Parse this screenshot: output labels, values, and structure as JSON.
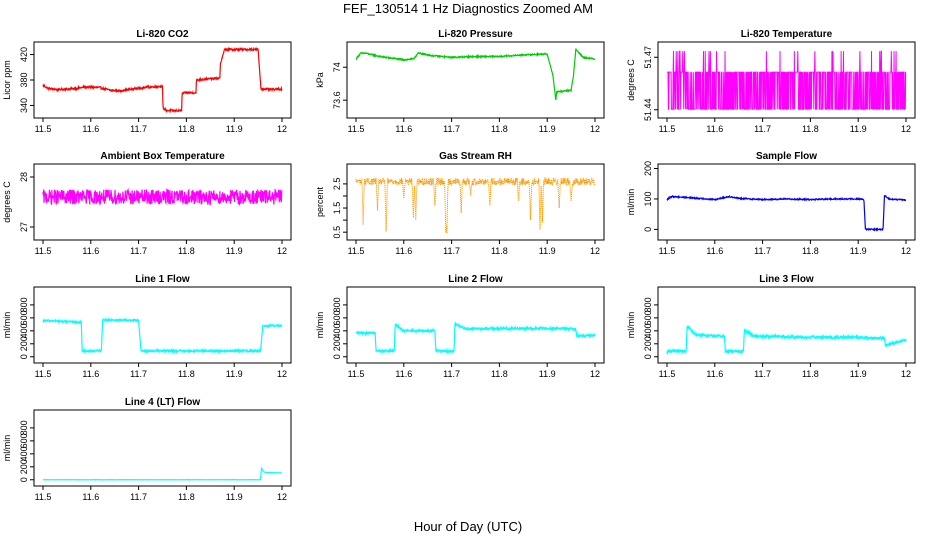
{
  "figure": {
    "title": "FEF_130514  1 Hz Diagnostics Zoomed AM",
    "xlabel": "Hour of Day (UTC)"
  },
  "chart_data": [
    {
      "type": "line",
      "title": "Li-820 CO2",
      "xlabel": "",
      "ylabel": "Licor ppm",
      "color": "#ff0000",
      "xlim": [
        11.5,
        12.0
      ],
      "ylim": [
        325,
        435
      ],
      "xticks": [
        11.5,
        11.6,
        11.7,
        11.8,
        11.9,
        12.0
      ],
      "yticks": [
        340,
        380,
        420
      ],
      "noise": 1.5,
      "series": [
        {
          "x": [
            11.5,
            11.51,
            11.53,
            11.56,
            11.59,
            11.62,
            11.64,
            11.66,
            11.68,
            11.7,
            11.72,
            11.75,
            11.751,
            11.76,
            11.79,
            11.791,
            11.8,
            11.82,
            11.821,
            11.85,
            11.87,
            11.871,
            11.88,
            11.9,
            11.93,
            11.95,
            11.956,
            11.96,
            11.98,
            12.0
          ],
          "y": [
            372,
            367,
            365,
            366,
            369,
            368,
            364,
            363,
            365,
            367,
            369,
            370,
            335,
            332,
            332,
            359,
            360,
            360,
            380,
            382,
            383,
            405,
            428,
            428,
            428,
            428,
            366,
            366,
            365,
            366
          ]
        }
      ]
    },
    {
      "type": "line",
      "title": "Li-820 Pressure",
      "xlabel": "",
      "ylabel": "kPa",
      "color": "#00cc00",
      "xlim": [
        11.5,
        12.0
      ],
      "ylim": [
        73.42,
        74.27
      ],
      "xticks": [
        11.5,
        11.6,
        11.7,
        11.8,
        11.9,
        12.0
      ],
      "yticks": [
        73.6,
        74.0
      ],
      "noise": 0.008,
      "series": [
        {
          "x": [
            11.5,
            11.51,
            11.52,
            11.55,
            11.6,
            11.62,
            11.63,
            11.66,
            11.7,
            11.75,
            11.8,
            11.85,
            11.9,
            11.912,
            11.918,
            11.92,
            11.95,
            11.955,
            11.96,
            11.975,
            12.0
          ],
          "y": [
            74.1,
            74.17,
            74.17,
            74.13,
            74.09,
            74.1,
            74.17,
            74.14,
            74.12,
            74.13,
            74.13,
            74.15,
            74.16,
            73.9,
            73.6,
            73.7,
            73.72,
            73.9,
            74.22,
            74.12,
            74.1
          ]
        }
      ]
    },
    {
      "type": "line",
      "title": "Li-820 Temperature",
      "xlabel": "",
      "ylabel": "degrees C",
      "color": "#ff00ff",
      "xlim": [
        11.5,
        12.0
      ],
      "ylim": [
        51.437,
        51.477
      ],
      "xticks": [
        11.5,
        11.6,
        11.7,
        11.8,
        11.9,
        12.0
      ],
      "yticks": [
        51.44,
        51.47
      ],
      "levels": [
        51.4403,
        51.4615,
        51.4735
      ],
      "series": [
        {
          "x": [
            11.5,
            12.0
          ],
          "y": [
            51.4615,
            51.4615
          ]
        }
      ]
    },
    {
      "type": "line",
      "title": "Ambient Box Temperature",
      "xlabel": "",
      "ylabel": "degrees C",
      "color": "#ff00ff",
      "xlim": [
        11.5,
        12.0
      ],
      "ylim": [
        26.8,
        28.2
      ],
      "xticks": [
        11.5,
        11.6,
        11.7,
        11.8,
        11.9,
        12.0
      ],
      "yticks": [
        27.0,
        28.0
      ],
      "noise": 0.15,
      "series": [
        {
          "x": [
            11.5,
            12.0
          ],
          "y": [
            27.6,
            27.6
          ]
        }
      ]
    },
    {
      "type": "scatter",
      "title": "Gas Stream RH",
      "xlabel": "",
      "ylabel": "percent",
      "color": "#ff9900",
      "xlim": [
        11.5,
        12.0
      ],
      "ylim": [
        0.3,
        3.2
      ],
      "xticks": [
        11.5,
        11.6,
        11.7,
        11.8,
        11.9,
        12.0
      ],
      "yticks": [
        0.5,
        1.5,
        2.5
      ],
      "yticks_minor": [
        1.0,
        2.0
      ],
      "noise": 0.15,
      "dips": [
        [
          11.515,
          0.8
        ],
        [
          11.545,
          1.4
        ],
        [
          11.563,
          0.4
        ],
        [
          11.6,
          1.9
        ],
        [
          11.62,
          1.1
        ],
        [
          11.625,
          1.0
        ],
        [
          11.665,
          1.6
        ],
        [
          11.688,
          0.35
        ],
        [
          11.69,
          0.45
        ],
        [
          11.72,
          1.3
        ],
        [
          11.74,
          2.0
        ],
        [
          11.78,
          1.6
        ],
        [
          11.84,
          1.8
        ],
        [
          11.865,
          1.0
        ],
        [
          11.885,
          0.6
        ],
        [
          11.89,
          0.9
        ],
        [
          11.925,
          1.5
        ],
        [
          11.95,
          1.8
        ]
      ],
      "series": [
        {
          "x": [
            11.5,
            12.0
          ],
          "y": [
            2.6,
            2.6
          ]
        }
      ]
    },
    {
      "type": "line",
      "title": "Sample Flow",
      "xlabel": "",
      "ylabel": "ml/min",
      "color": "#0000ff",
      "xlim": [
        11.5,
        12.0
      ],
      "ylim": [
        -25,
        205
      ],
      "xticks": [
        11.5,
        11.6,
        11.7,
        11.8,
        11.9,
        12.0
      ],
      "yticks": [
        0,
        100,
        200
      ],
      "noise": 2,
      "series": [
        {
          "x": [
            11.5,
            11.51,
            11.55,
            11.6,
            11.63,
            11.65,
            11.7,
            11.75,
            11.8,
            11.85,
            11.9,
            11.912,
            11.915,
            11.952,
            11.955,
            11.965,
            12.0
          ],
          "y": [
            98,
            108,
            104,
            98,
            108,
            102,
            98,
            100,
            98,
            100,
            100,
            98,
            0,
            0,
            112,
            100,
            96
          ]
        }
      ]
    },
    {
      "type": "line",
      "title": "Line 1 Flow",
      "xlabel": "",
      "ylabel": "ml/min",
      "color": "#00ffff",
      "xlim": [
        11.5,
        12.0
      ],
      "ylim": [
        -50,
        1030
      ],
      "xticks": [
        11.5,
        11.6,
        11.7,
        11.8,
        11.9,
        12.0
      ],
      "yticks": [
        0,
        200,
        400,
        600,
        800
      ],
      "noise": 15,
      "series": [
        {
          "x": [
            11.5,
            11.502,
            11.58,
            11.582,
            11.622,
            11.625,
            11.7,
            11.705,
            11.955,
            11.96,
            12.0
          ],
          "y": [
            520,
            560,
            530,
            90,
            90,
            570,
            560,
            90,
            90,
            480,
            480
          ]
        }
      ]
    },
    {
      "type": "line",
      "title": "Line 2 Flow",
      "xlabel": "",
      "ylabel": "ml/min",
      "color": "#00ffff",
      "xlim": [
        11.5,
        12.0
      ],
      "ylim": [
        -50,
        1030
      ],
      "xticks": [
        11.5,
        11.6,
        11.7,
        11.8,
        11.9,
        12.0
      ],
      "yticks": [
        0,
        200,
        400,
        600,
        800
      ],
      "noise": 18,
      "series": [
        {
          "x": [
            11.5,
            11.54,
            11.542,
            11.58,
            11.582,
            11.6,
            11.665,
            11.667,
            11.705,
            11.707,
            11.73,
            11.9,
            11.96,
            11.962,
            12.0
          ],
          "y": [
            370,
            370,
            90,
            90,
            500,
            400,
            400,
            90,
            90,
            510,
            430,
            440,
            430,
            320,
            330
          ]
        }
      ]
    },
    {
      "type": "line",
      "title": "Line 3 Flow",
      "xlabel": "",
      "ylabel": "ml/min",
      "color": "#00ffff",
      "xlim": [
        11.5,
        12.0
      ],
      "ylim": [
        -50,
        1030
      ],
      "xticks": [
        11.5,
        11.6,
        11.7,
        11.8,
        11.9,
        12.0
      ],
      "yticks": [
        0,
        200,
        400,
        600,
        800
      ],
      "noise": 22,
      "series": [
        {
          "x": [
            11.5,
            11.502,
            11.54,
            11.542,
            11.56,
            11.62,
            11.622,
            11.66,
            11.662,
            11.68,
            11.8,
            11.9,
            11.955,
            11.957,
            12.0
          ],
          "y": [
            60,
            90,
            90,
            470,
            340,
            320,
            90,
            90,
            420,
            320,
            300,
            300,
            280,
            180,
            260
          ]
        }
      ]
    },
    {
      "type": "line",
      "title": "Line 4 (LT) Flow",
      "xlabel": "",
      "ylabel": "ml/min",
      "color": "#00ffff",
      "xlim": [
        11.5,
        12.0
      ],
      "ylim": [
        -50,
        1030
      ],
      "xticks": [
        11.5,
        11.6,
        11.7,
        11.8,
        11.9,
        12.0
      ],
      "yticks": [
        0,
        200,
        400,
        600,
        800
      ],
      "noise": 2,
      "series": [
        {
          "x": [
            11.5,
            11.955,
            11.957,
            11.962,
            11.97,
            12.0
          ],
          "y": [
            0,
            0,
            180,
            120,
            110,
            105
          ]
        }
      ]
    }
  ]
}
